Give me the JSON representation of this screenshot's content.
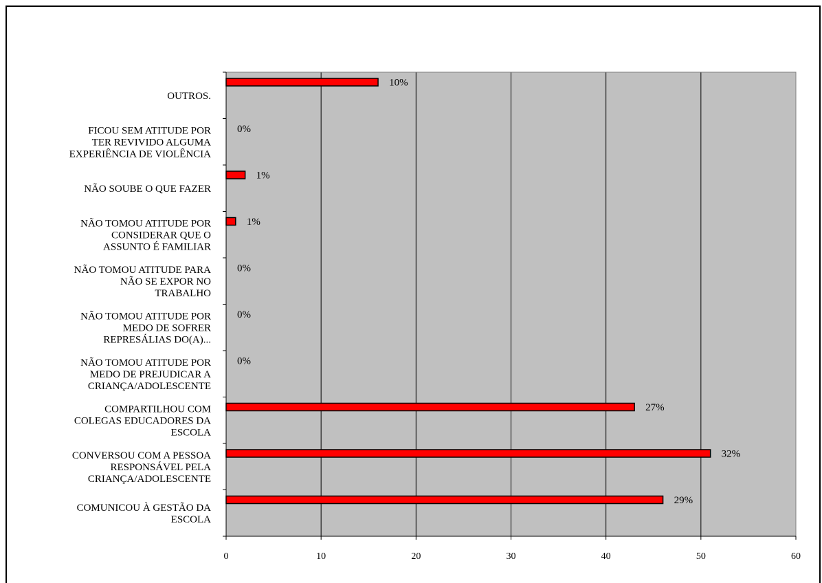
{
  "chart_data": {
    "type": "bar",
    "orientation": "horizontal",
    "categories": [
      "OUTROS.",
      "FICOU SEM ATITUDE POR TER REVIVIDO ALGUMA EXPERIÊNCIA DE VIOLÊNCIA",
      "NÃO SOUBE O QUE FAZER",
      "NÃO TOMOU ATITUDE POR CONSIDERAR QUE O ASSUNTO É FAMILIAR",
      "NÃO TOMOU ATITUDE PARA NÃO SE EXPOR NO TRABALHO",
      "NÃO TOMOU ATITUDE POR MEDO DE SOFRER REPRESÁLIAS DO(A)...",
      "NÃO TOMOU ATITUDE POR MEDO DE PREJUDICAR A CRIANÇA/ADOLESCENTE",
      "COMPARTILHOU COM COLEGAS EDUCADORES DA ESCOLA",
      "CONVERSOU COM A PESSOA RESPONSÁVEL PELA CRIANÇA/ADOLESCENTE",
      "COMUNICOU À GESTÃO DA ESCOLA"
    ],
    "category_lines": [
      [
        "OUTROS."
      ],
      [
        "FICOU SEM ATITUDE POR",
        "TER REVIVIDO ALGUMA",
        "EXPERIÊNCIA DE VIOLÊNCIA"
      ],
      [
        "NÃO SOUBE O QUE FAZER"
      ],
      [
        "NÃO TOMOU ATITUDE POR",
        "CONSIDERAR QUE O",
        "ASSUNTO É FAMILIAR"
      ],
      [
        "NÃO TOMOU ATITUDE PARA",
        "NÃO SE EXPOR NO",
        "TRABALHO"
      ],
      [
        "NÃO TOMOU ATITUDE POR",
        "MEDO DE SOFRER",
        "REPRESÁLIAS DO(A)..."
      ],
      [
        "NÃO TOMOU ATITUDE POR",
        "MEDO DE PREJUDICAR A",
        "CRIANÇA/ADOLESCENTE"
      ],
      [
        "COMPARTILHOU COM",
        "COLEGAS EDUCADORES DA",
        "ESCOLA"
      ],
      [
        "CONVERSOU COM A PESSOA",
        "RESPONSÁVEL PELA",
        "CRIANÇA/ADOLESCENTE"
      ],
      [
        "COMUNICOU À GESTÃO DA",
        "ESCOLA"
      ]
    ],
    "values": [
      16,
      0,
      2,
      1,
      0,
      0,
      0,
      43,
      51,
      46
    ],
    "data_labels": [
      "10%",
      "0%",
      "1%",
      "1%",
      "0%",
      "0%",
      "0%",
      "27%",
      "32%",
      "29%"
    ],
    "xlim": [
      0,
      60
    ],
    "x_ticks": [
      "0",
      "10",
      "20",
      "30",
      "40",
      "50",
      "60"
    ],
    "grid": true,
    "colors": {
      "bar": "#ff0000",
      "bar_edge": "#000000",
      "plot_background": "#c0c0c0",
      "gridline": "#000000"
    },
    "title": "",
    "xlabel": "",
    "ylabel": ""
  }
}
